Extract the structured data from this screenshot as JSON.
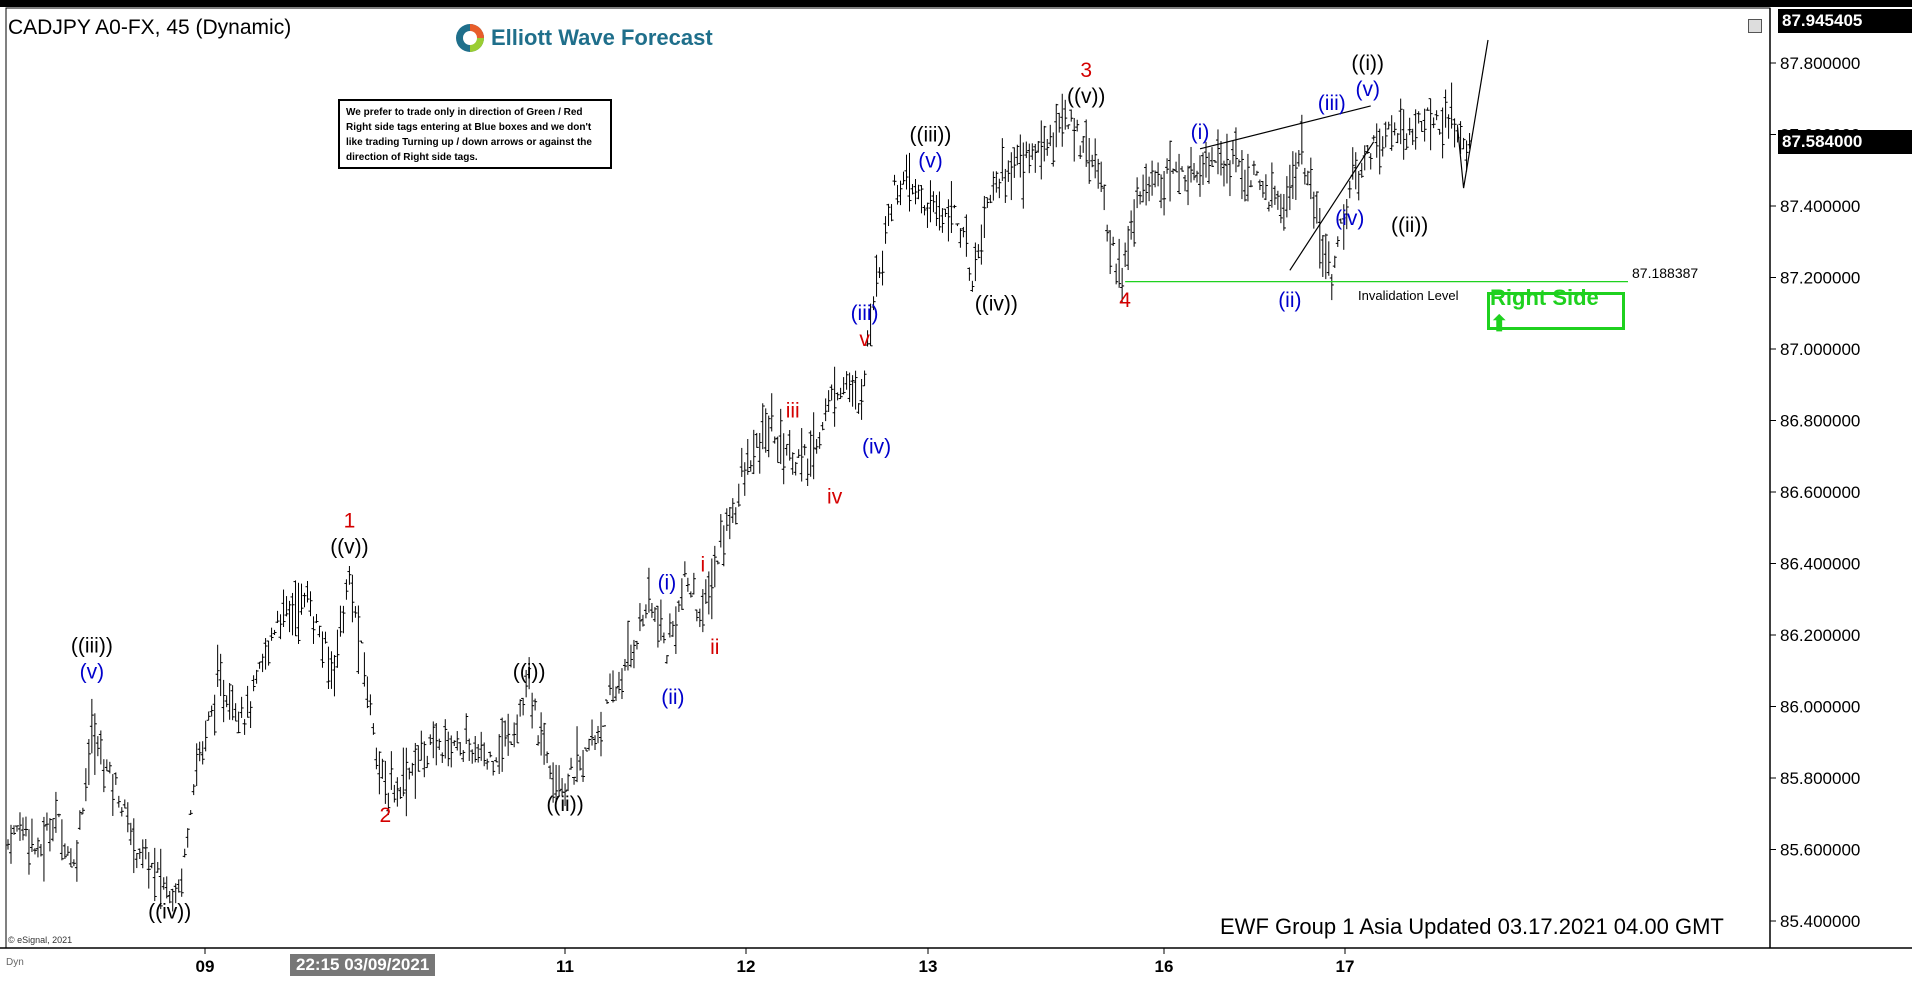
{
  "header": {
    "title": "CADJPY A0-FX, 45 (Dynamic)",
    "logo_text": "Elliott Wave Forecast"
  },
  "note": {
    "text": "We prefer to trade only in direction of Green / Red Right side tags entering at Blue boxes and we don't like trading Turning up / down arrows or against the direction of Right side tags."
  },
  "footer": {
    "updated": "EWF Group 1 Asia Updated 03.17.2021 04.00 GMT",
    "copyright": "© eSignal, 2021",
    "dyn": "Dyn"
  },
  "right_side_tag": "Right Side ⬆",
  "invalidation": {
    "label": "Invalidation Level",
    "value": "87.188387"
  },
  "price_tags": {
    "high": "87.945405",
    "last": "87.584000"
  },
  "time_tag": "22:15 03/09/2021",
  "colors": {
    "red": "#d40000",
    "blue": "#0000cc",
    "green": "#1fd11f",
    "black": "#000000"
  },
  "chart_data": {
    "type": "bar",
    "y_ticks": [
      "85.400000",
      "85.600000",
      "85.800000",
      "86.000000",
      "86.200000",
      "86.400000",
      "86.600000",
      "86.800000",
      "87.000000",
      "87.200000",
      "87.400000",
      "87.600000",
      "87.800000"
    ],
    "y_range": [
      85.4,
      87.945405
    ],
    "x_ticks": [
      "09",
      "11",
      "12",
      "13",
      "16",
      "17"
    ],
    "price_path": [
      [
        0,
        85.62
      ],
      [
        6,
        85.68
      ],
      [
        10,
        85.58
      ],
      [
        16,
        85.7
      ],
      [
        22,
        85.55
      ],
      [
        28,
        85.92
      ],
      [
        36,
        85.78
      ],
      [
        42,
        85.62
      ],
      [
        48,
        85.55
      ],
      [
        54,
        85.48
      ],
      [
        58,
        85.52
      ],
      [
        62,
        85.8
      ],
      [
        70,
        86.05
      ],
      [
        80,
        85.98
      ],
      [
        90,
        86.25
      ],
      [
        100,
        86.3
      ],
      [
        108,
        86.1
      ],
      [
        114,
        86.35
      ],
      [
        120,
        86.05
      ],
      [
        126,
        85.75
      ],
      [
        132,
        85.8
      ],
      [
        140,
        85.88
      ],
      [
        150,
        85.9
      ],
      [
        160,
        85.85
      ],
      [
        168,
        85.92
      ],
      [
        174,
        86.05
      ],
      [
        178,
        85.9
      ],
      [
        186,
        85.78
      ],
      [
        192,
        85.85
      ],
      [
        198,
        85.95
      ],
      [
        206,
        86.1
      ],
      [
        214,
        86.3
      ],
      [
        220,
        86.15
      ],
      [
        226,
        86.35
      ],
      [
        232,
        86.25
      ],
      [
        238,
        86.45
      ],
      [
        246,
        86.65
      ],
      [
        254,
        86.78
      ],
      [
        262,
        86.7
      ],
      [
        268,
        86.68
      ],
      [
        274,
        86.85
      ],
      [
        280,
        86.92
      ],
      [
        284,
        86.82
      ],
      [
        290,
        87.2
      ],
      [
        296,
        87.45
      ],
      [
        302,
        87.45
      ],
      [
        308,
        87.38
      ],
      [
        316,
        87.4
      ],
      [
        322,
        87.2
      ],
      [
        328,
        87.45
      ],
      [
        336,
        87.52
      ],
      [
        344,
        87.55
      ],
      [
        352,
        87.64
      ],
      [
        360,
        87.58
      ],
      [
        364,
        87.5
      ],
      [
        368,
        87.3
      ],
      [
        372,
        87.2
      ],
      [
        378,
        87.45
      ],
      [
        386,
        87.5
      ],
      [
        394,
        87.48
      ],
      [
        402,
        87.55
      ],
      [
        410,
        87.52
      ],
      [
        418,
        87.45
      ],
      [
        426,
        87.4
      ],
      [
        432,
        87.55
      ],
      [
        438,
        87.3
      ],
      [
        442,
        87.22
      ],
      [
        448,
        87.45
      ],
      [
        456,
        87.58
      ],
      [
        462,
        87.6
      ],
      [
        470,
        87.62
      ],
      [
        476,
        87.65
      ],
      [
        482,
        87.62
      ],
      [
        488,
        87.58
      ]
    ],
    "labels": [
      {
        "t": "((iii))",
        "c": "black",
        "i": 28,
        "p": 86.05,
        "pos": "above",
        "o": 2
      },
      {
        "t": "(v)",
        "c": "blue",
        "i": 28,
        "p": 86.05,
        "pos": "above",
        "o": 1
      },
      {
        "t": "((iv))",
        "c": "black",
        "i": 54,
        "p": 85.48,
        "pos": "below",
        "o": 1
      },
      {
        "t": "1",
        "c": "red",
        "i": 114,
        "p": 86.4,
        "pos": "above",
        "o": 2
      },
      {
        "t": "((v))",
        "c": "black",
        "i": 114,
        "p": 86.4,
        "pos": "above",
        "o": 1
      },
      {
        "t": "2",
        "c": "red",
        "i": 126,
        "p": 85.75,
        "pos": "below",
        "o": 1
      },
      {
        "t": "((i))",
        "c": "black",
        "i": 174,
        "p": 86.05,
        "pos": "above",
        "o": 1
      },
      {
        "t": "((ii))",
        "c": "black",
        "i": 186,
        "p": 85.78,
        "pos": "below",
        "o": 1
      },
      {
        "t": "(i)",
        "c": "blue",
        "i": 220,
        "p": 86.3,
        "pos": "above",
        "o": 1
      },
      {
        "t": "(ii)",
        "c": "blue",
        "i": 222,
        "p": 86.08,
        "pos": "below",
        "o": 1
      },
      {
        "t": "i",
        "c": "red",
        "i": 232,
        "p": 86.35,
        "pos": "above",
        "o": 1
      },
      {
        "t": "ii",
        "c": "red",
        "i": 236,
        "p": 86.22,
        "pos": "below",
        "o": 1
      },
      {
        "t": "iii",
        "c": "red",
        "i": 262,
        "p": 86.78,
        "pos": "above",
        "o": 1
      },
      {
        "t": "iv",
        "c": "red",
        "i": 276,
        "p": 86.64,
        "pos": "below",
        "o": 1
      },
      {
        "t": "(iii)",
        "c": "blue",
        "i": 286,
        "p": 86.98,
        "pos": "above",
        "o": 2
      },
      {
        "t": "v",
        "c": "red",
        "i": 286,
        "p": 86.98,
        "pos": "above",
        "o": 1
      },
      {
        "t": "(iv)",
        "c": "blue",
        "i": 290,
        "p": 86.78,
        "pos": "below",
        "o": 1
      },
      {
        "t": "((iii))",
        "c": "black",
        "i": 308,
        "p": 87.48,
        "pos": "above",
        "o": 2
      },
      {
        "t": "(v)",
        "c": "blue",
        "i": 308,
        "p": 87.48,
        "pos": "above",
        "o": 1
      },
      {
        "t": "((iv))",
        "c": "black",
        "i": 330,
        "p": 87.18,
        "pos": "below",
        "o": 1
      },
      {
        "t": "3",
        "c": "red",
        "i": 360,
        "p": 87.66,
        "pos": "above",
        "o": 2
      },
      {
        "t": "((v))",
        "c": "black",
        "i": 360,
        "p": 87.66,
        "pos": "above",
        "o": 1
      },
      {
        "t": "4",
        "c": "red",
        "i": 373,
        "p": 87.19,
        "pos": "below",
        "o": 1
      },
      {
        "t": "(i)",
        "c": "blue",
        "i": 398,
        "p": 87.56,
        "pos": "above",
        "o": 1
      },
      {
        "t": "(ii)",
        "c": "blue",
        "i": 428,
        "p": 87.19,
        "pos": "below",
        "o": 1
      },
      {
        "t": "(iii)",
        "c": "blue",
        "i": 442,
        "p": 87.64,
        "pos": "above",
        "o": 1
      },
      {
        "t": "(iv)",
        "c": "blue",
        "i": 448,
        "p": 87.42,
        "pos": "below",
        "o": 1
      },
      {
        "t": "((i))",
        "c": "black",
        "i": 454,
        "p": 87.68,
        "pos": "above",
        "o": 2
      },
      {
        "t": "(v)",
        "c": "blue",
        "i": 454,
        "p": 87.68,
        "pos": "above",
        "o": 1
      },
      {
        "t": "((ii))",
        "c": "black",
        "i": 468,
        "p": 87.4,
        "pos": "below",
        "o": 1
      }
    ]
  }
}
